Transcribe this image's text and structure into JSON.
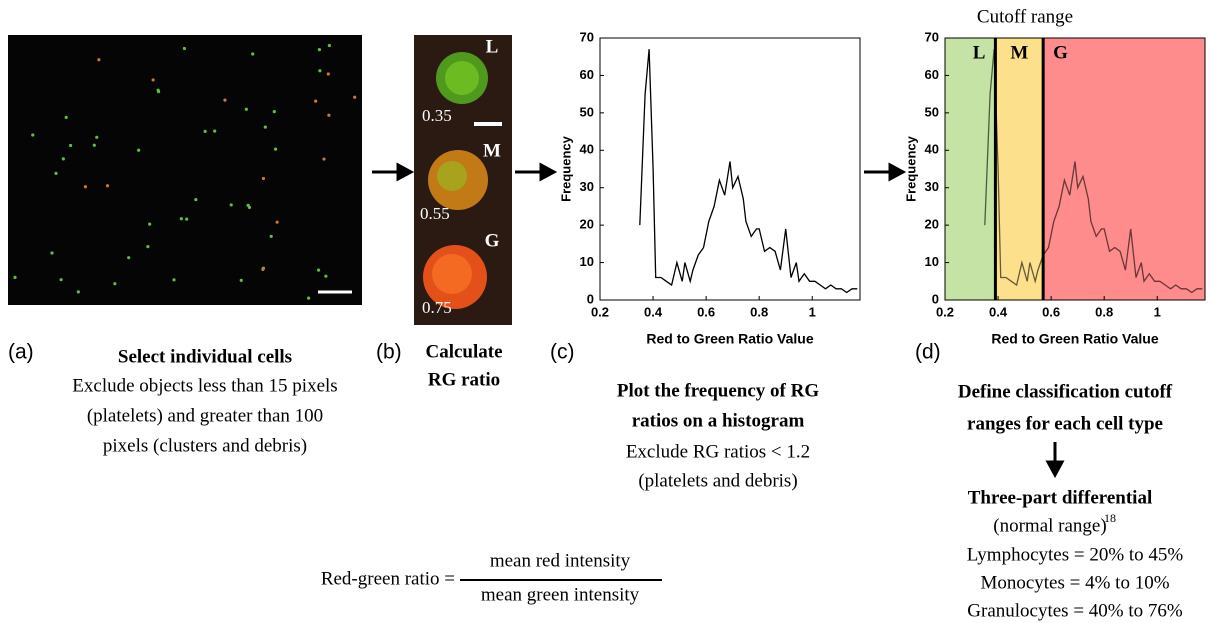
{
  "panels": {
    "a": {
      "label": "(a)",
      "title": "Select individual cells",
      "lines": [
        "Exclude objects less than 15 pixels",
        "(platelets) and greater than 100",
        "pixels (clusters and debris)"
      ]
    },
    "b": {
      "label": "(b)",
      "title_lines": [
        "Calculate",
        "RG ratio"
      ],
      "cells": [
        {
          "letter": "L",
          "ratio": "0.35"
        },
        {
          "letter": "M",
          "ratio": "0.55"
        },
        {
          "letter": "G",
          "ratio": "0.75"
        }
      ]
    },
    "c": {
      "label": "(c)",
      "title_lines": [
        "Plot the frequency of RG",
        "ratios on a histogram"
      ],
      "lines": [
        "Exclude RG ratios < 1.2",
        "(platelets and debris)"
      ]
    },
    "d": {
      "label": "(d)",
      "title_lines": [
        "Define classification cutoff",
        "ranges for each cell type"
      ],
      "result_title": "Three-part differential",
      "normal_range": "(normal range)",
      "ref": "18",
      "ranges": [
        "Lymphocytes = 20% to 45%",
        "Monocytes = 4% to 10%",
        "Granulocytes = 40% to 76%"
      ]
    }
  },
  "formula": {
    "lhs": "Red-green ratio =",
    "numerator": "mean red intensity",
    "denominator": "mean green intensity"
  },
  "chart_data": [
    {
      "type": "line",
      "x_label": "Red to Green Ratio Value",
      "y_label": "Frequency",
      "color": "#000000",
      "x": [
        0.35,
        0.37,
        0.385,
        0.4,
        0.41,
        0.43,
        0.45,
        0.47,
        0.49,
        0.51,
        0.52,
        0.54,
        0.55,
        0.57,
        0.59,
        0.61,
        0.63,
        0.65,
        0.67,
        0.69,
        0.7,
        0.72,
        0.74,
        0.75,
        0.77,
        0.79,
        0.8,
        0.82,
        0.84,
        0.86,
        0.88,
        0.9,
        0.92,
        0.94,
        0.95,
        0.97,
        0.99,
        1.01,
        1.03,
        1.05,
        1.07,
        1.09,
        1.11,
        1.13,
        1.15,
        1.17
      ],
      "values": [
        20,
        55,
        67,
        35,
        6,
        6,
        5,
        4,
        10,
        5,
        10,
        5,
        8,
        12,
        14,
        21,
        25,
        32,
        28,
        37,
        30,
        33,
        27,
        21,
        17,
        19,
        19,
        13,
        14,
        13,
        8,
        19,
        6,
        10,
        5,
        7,
        5,
        5,
        4,
        3,
        4,
        3,
        3,
        2,
        3,
        3
      ],
      "xlim": [
        0.2,
        1.18
      ],
      "xticks": [
        0.2,
        0.4,
        0.6,
        0.8,
        1
      ],
      "ylim": [
        0,
        70
      ],
      "yticks": [
        0,
        10,
        20,
        30,
        40,
        50,
        60,
        70
      ]
    },
    {
      "type": "line",
      "title": "Cutoff range",
      "x_label": "Red to Green Ratio Value",
      "y_label": "Frequency",
      "color": "#000000",
      "x": [
        0.35,
        0.37,
        0.385,
        0.4,
        0.41,
        0.43,
        0.45,
        0.47,
        0.49,
        0.51,
        0.52,
        0.54,
        0.55,
        0.57,
        0.59,
        0.61,
        0.63,
        0.65,
        0.67,
        0.69,
        0.7,
        0.72,
        0.74,
        0.75,
        0.77,
        0.79,
        0.8,
        0.82,
        0.84,
        0.86,
        0.88,
        0.9,
        0.92,
        0.94,
        0.95,
        0.97,
        0.99,
        1.01,
        1.03,
        1.05,
        1.07,
        1.09,
        1.11,
        1.13,
        1.15,
        1.17
      ],
      "values": [
        20,
        55,
        67,
        35,
        6,
        6,
        5,
        4,
        10,
        5,
        10,
        5,
        8,
        12,
        14,
        21,
        25,
        32,
        28,
        37,
        30,
        33,
        27,
        21,
        17,
        19,
        19,
        13,
        14,
        13,
        8,
        19,
        6,
        10,
        5,
        7,
        5,
        5,
        4,
        3,
        4,
        3,
        3,
        2,
        3,
        3
      ],
      "xlim": [
        0.2,
        1.18
      ],
      "xticks": [
        0.2,
        0.4,
        0.6,
        0.8,
        1
      ],
      "ylim": [
        0,
        70
      ],
      "yticks": [
        0,
        10,
        20,
        30,
        40,
        50,
        60,
        70
      ],
      "regions": [
        {
          "label": "L",
          "from": 0.2,
          "to": 0.39,
          "color": "#c5e3a4"
        },
        {
          "label": "M",
          "from": 0.39,
          "to": 0.57,
          "color": "#fde08c"
        },
        {
          "label": "G",
          "from": 0.57,
          "to": 1.18,
          "color": "#ff8c8c"
        }
      ],
      "cutoffs": [
        0.39,
        0.57
      ]
    }
  ]
}
